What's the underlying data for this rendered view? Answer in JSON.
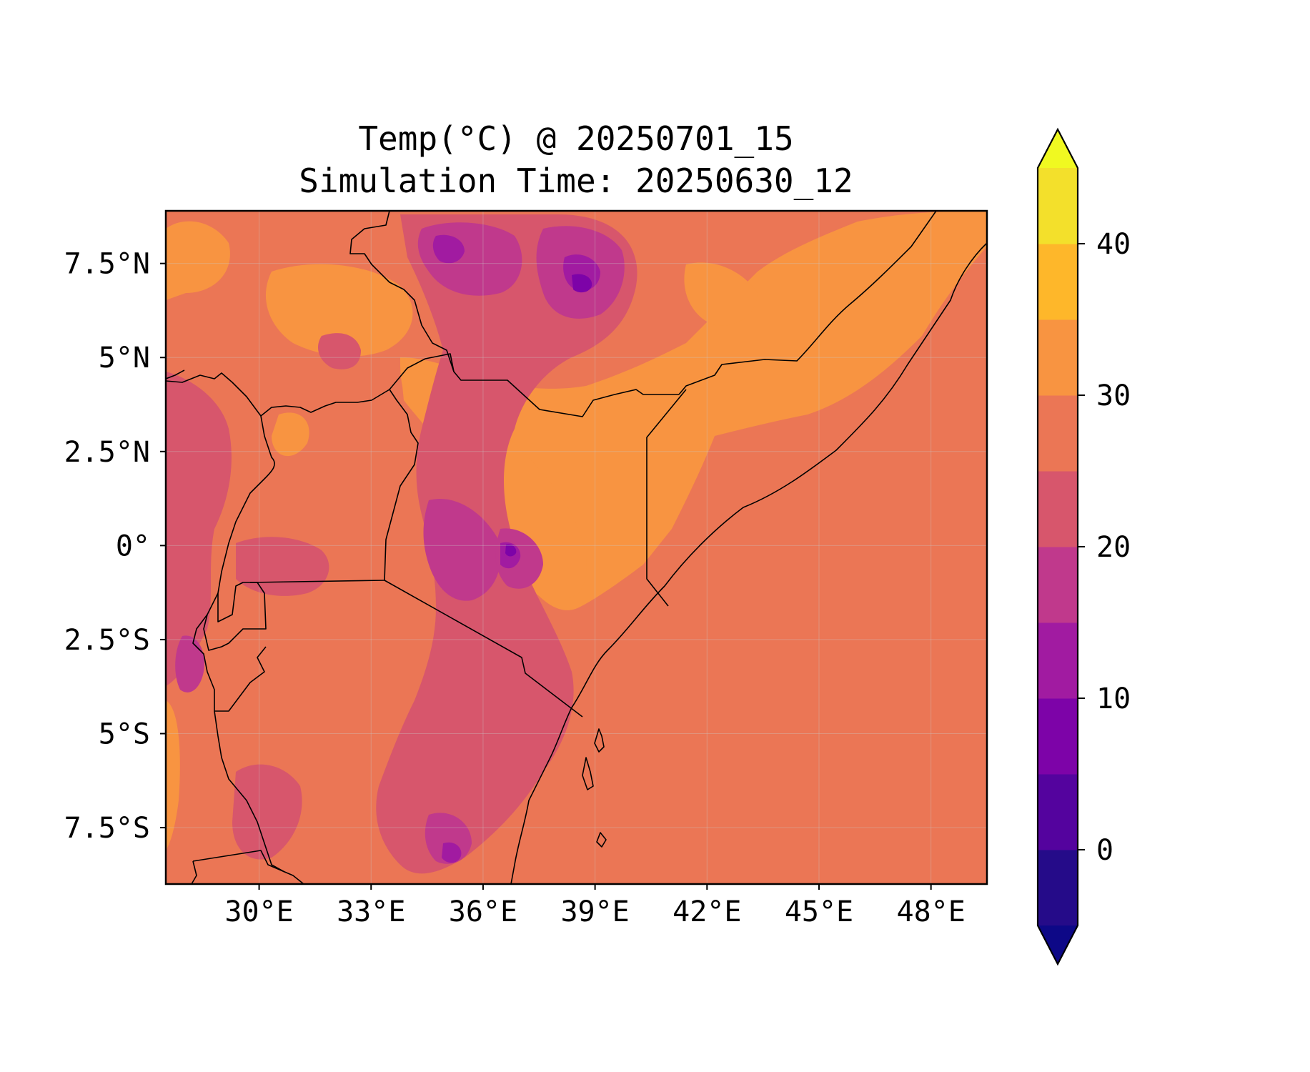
{
  "title": {
    "line1": "Temp(°C) @ 20250701_15",
    "line2": "Simulation Time: 20250630_12"
  },
  "map": {
    "field": "temperature",
    "units": "°C",
    "lon_range": [
      27.5,
      49.5
    ],
    "lat_range": [
      -9,
      8.9
    ],
    "x_ticks": [
      {
        "lon": 30,
        "label": "30°E"
      },
      {
        "lon": 33,
        "label": "33°E"
      },
      {
        "lon": 36,
        "label": "36°E"
      },
      {
        "lon": 39,
        "label": "39°E"
      },
      {
        "lon": 42,
        "label": "42°E"
      },
      {
        "lon": 45,
        "label": "45°E"
      },
      {
        "lon": 48,
        "label": "48°E"
      }
    ],
    "y_ticks": [
      {
        "lat": 7.5,
        "label": "7.5°N"
      },
      {
        "lat": 5,
        "label": "5°N"
      },
      {
        "lat": 2.5,
        "label": "2.5°N"
      },
      {
        "lat": 0,
        "label": "0°"
      },
      {
        "lat": -2.5,
        "label": "2.5°S"
      },
      {
        "lat": -5,
        "label": "5°S"
      },
      {
        "lat": -7.5,
        "label": "7.5°S"
      }
    ]
  },
  "colorbar": {
    "levels": [
      -5,
      0,
      5,
      10,
      15,
      20,
      25,
      30,
      35,
      40,
      45
    ],
    "colors": [
      "#250b89",
      "#54039e",
      "#7d03a8",
      "#a11ba1",
      "#c0398c",
      "#d7566c",
      "#eb7655",
      "#f89441",
      "#feb72a",
      "#f3e02b"
    ],
    "under_color": "#0d0887",
    "over_color": "#f0f921",
    "extend": "both",
    "ticks": [
      {
        "value": 0,
        "label": "0"
      },
      {
        "value": 10,
        "label": "10"
      },
      {
        "value": 20,
        "label": "20"
      },
      {
        "value": 30,
        "label": "30"
      },
      {
        "value": 40,
        "label": "40"
      }
    ]
  }
}
